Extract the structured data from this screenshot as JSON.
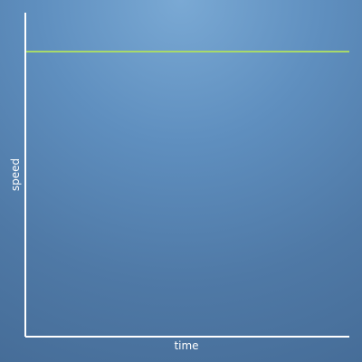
{
  "chart_data": {
    "type": "line",
    "xlabel": "time",
    "ylabel": "speed",
    "grid": false,
    "series": [
      {
        "x": [
          0,
          1
        ],
        "y": [
          0.88,
          0.88
        ],
        "color": "#a7d96b"
      }
    ],
    "xlim": [
      0,
      1
    ],
    "ylim": [
      0,
      1
    ]
  },
  "colors": {
    "axis": "#ffffff",
    "series": "#a7d96b"
  }
}
